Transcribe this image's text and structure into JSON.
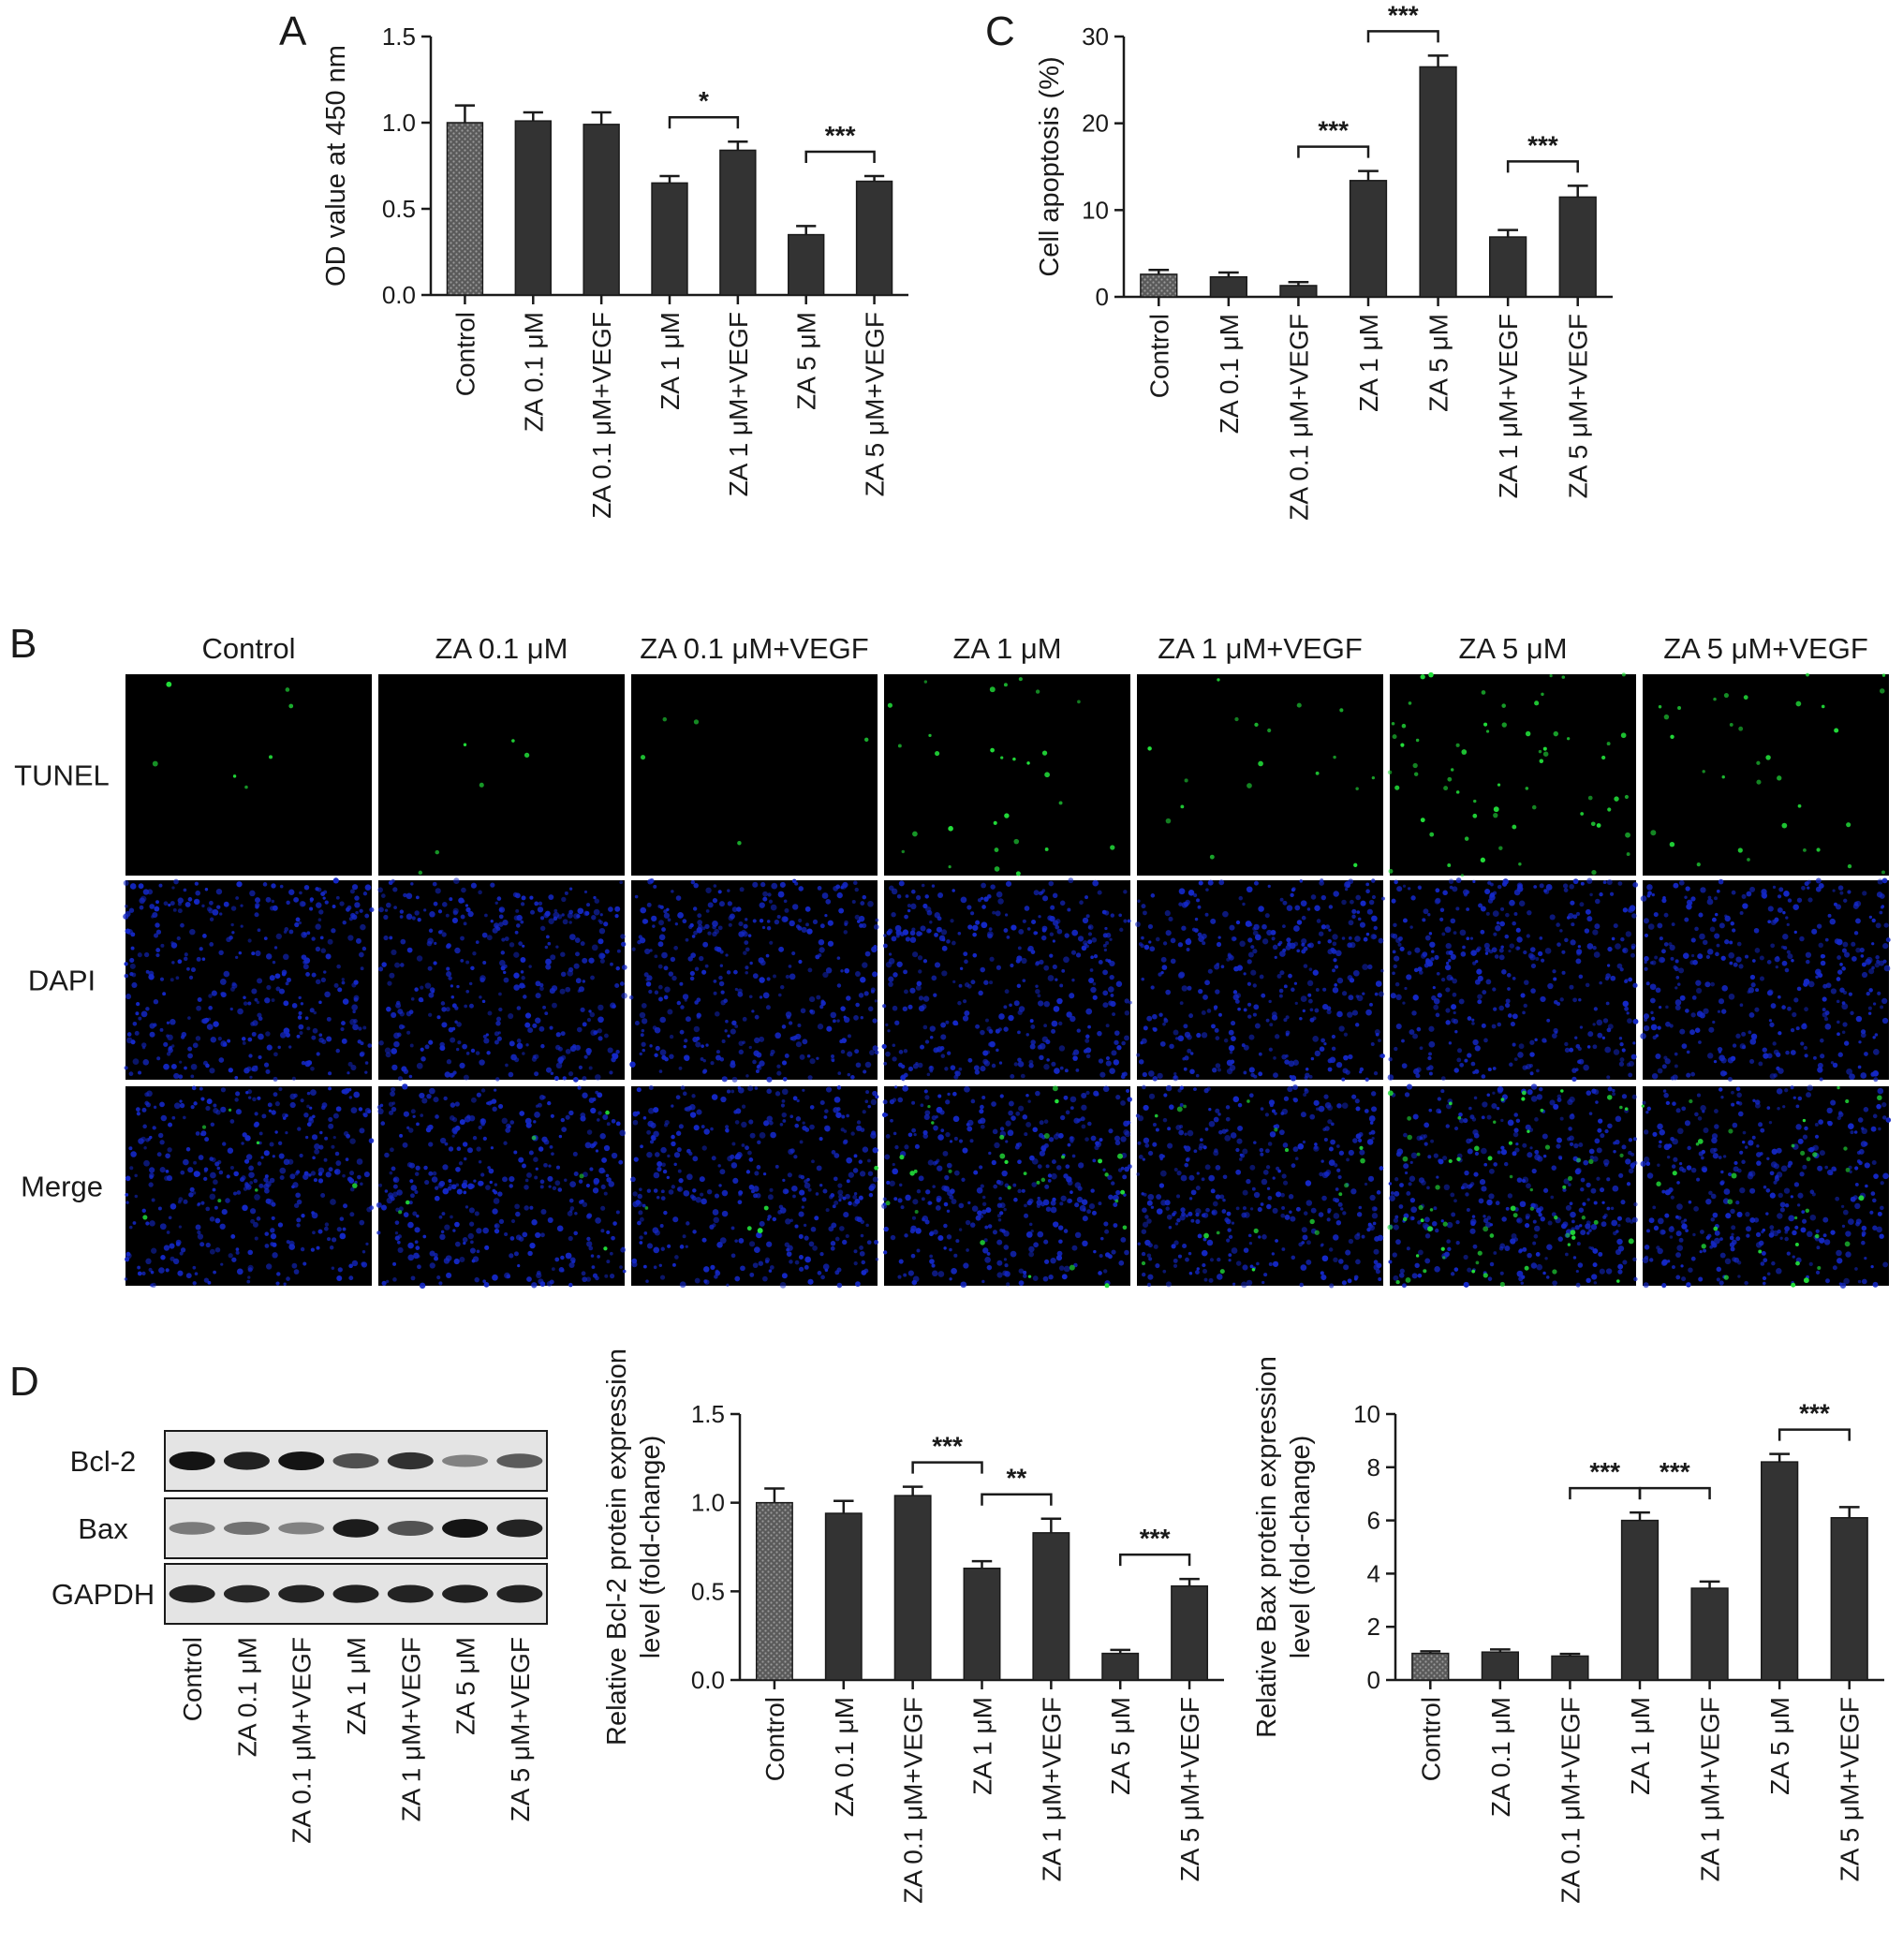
{
  "panels": {
    "A": {
      "letter": "A"
    },
    "B": {
      "letter": "B"
    },
    "C": {
      "letter": "C"
    },
    "D": {
      "letter": "D"
    }
  },
  "colors": {
    "bar": "#333333",
    "control_bar": "#6a6a6a",
    "tunel": "#22e03a",
    "dapi": "#1428c8",
    "blot_bg": "#e4e4e4",
    "band": "#141414"
  },
  "chart_data": [
    {
      "id": "A",
      "type": "bar",
      "title": "",
      "ylabel": "OD value at 450 nm",
      "categories": [
        "Control",
        "ZA 0.1 μM",
        "ZA 0.1 μM+VEGF",
        "ZA 1 μM",
        "ZA 1 μM+VEGF",
        "ZA 5 μM",
        "ZA 5 μM+VEGF"
      ],
      "values": [
        1.0,
        1.01,
        0.99,
        0.65,
        0.84,
        0.35,
        0.66
      ],
      "errors": [
        0.1,
        0.05,
        0.07,
        0.04,
        0.05,
        0.05,
        0.03
      ],
      "ylim": [
        0,
        1.5
      ],
      "yticks": [
        "0.0",
        "0.5",
        "1.0",
        "1.5"
      ],
      "significance": [
        {
          "from": 3,
          "to": 4,
          "label": "*"
        },
        {
          "from": 5,
          "to": 6,
          "label": "***"
        }
      ]
    },
    {
      "id": "C",
      "type": "bar",
      "title": "",
      "ylabel": "Cell apoptosis (%)",
      "categories": [
        "Control",
        "ZA 0.1 μM",
        "ZA 0.1 μM+VEGF",
        "ZA 1 μM",
        "ZA 5 μM",
        "ZA 1 μM+VEGF",
        "ZA 5 μM+VEGF"
      ],
      "values": [
        2.6,
        2.3,
        1.3,
        13.4,
        26.5,
        6.9,
        11.5
      ],
      "errors": [
        0.5,
        0.5,
        0.4,
        1.1,
        1.3,
        0.8,
        1.3
      ],
      "ylim": [
        0,
        30
      ],
      "yticks": [
        "0",
        "10",
        "20",
        "30"
      ],
      "significance": [
        {
          "from": 2,
          "to": 3,
          "label": "***"
        },
        {
          "from": 3,
          "to": 4,
          "label": "***"
        },
        {
          "from": 5,
          "to": 6,
          "label": "***"
        }
      ]
    },
    {
      "id": "D-bcl2",
      "type": "bar",
      "title": "",
      "ylabel": [
        "Relative Bcl-2 protein expression",
        "level (fold-change)"
      ],
      "categories": [
        "Control",
        "ZA 0.1 μM",
        "ZA 0.1 μM+VEGF",
        "ZA 1 μM",
        "ZA 1 μM+VEGF",
        "ZA 5 μM",
        "ZA 5 μM+VEGF"
      ],
      "values": [
        1.0,
        0.94,
        1.04,
        0.63,
        0.83,
        0.15,
        0.53
      ],
      "errors": [
        0.08,
        0.07,
        0.05,
        0.04,
        0.08,
        0.02,
        0.04
      ],
      "ylim": [
        0,
        1.5
      ],
      "yticks": [
        "0.0",
        "0.5",
        "1.0",
        "1.5"
      ],
      "significance": [
        {
          "from": 2,
          "to": 3,
          "label": "***"
        },
        {
          "from": 3,
          "to": 4,
          "label": "**"
        },
        {
          "from": 5,
          "to": 6,
          "label": "***"
        }
      ]
    },
    {
      "id": "D-bax",
      "type": "bar",
      "title": "",
      "ylabel": [
        "Relative Bax protein expression",
        "level (fold-change)"
      ],
      "categories": [
        "Control",
        "ZA 0.1 μM",
        "ZA 0.1 μM+VEGF",
        "ZA 1 μM",
        "ZA 1 μM+VEGF",
        "ZA 5 μM",
        "ZA 5 μM+VEGF"
      ],
      "values": [
        1.0,
        1.05,
        0.9,
        6.0,
        3.45,
        8.2,
        6.1
      ],
      "errors": [
        0.08,
        0.1,
        0.08,
        0.3,
        0.25,
        0.3,
        0.4
      ],
      "ylim": [
        0,
        10
      ],
      "yticks": [
        "0",
        "2",
        "4",
        "6",
        "8",
        "10"
      ],
      "significance": [
        {
          "from": 2,
          "to": 3,
          "label": "***"
        },
        {
          "from": 3,
          "to": 4,
          "label": "***"
        },
        {
          "from": 5,
          "to": 6,
          "label": "***"
        }
      ]
    }
  ],
  "microscopy": {
    "columns": [
      "Control",
      "ZA 0.1 μM",
      "ZA 0.1 μM+VEGF",
      "ZA 1 μM",
      "ZA 1 μM+VEGF",
      "ZA 5 μM",
      "ZA 5 μM+VEGF"
    ],
    "rows": [
      "TUNEL",
      "DAPI",
      "Merge"
    ],
    "tunel_level": [
      0.05,
      0.04,
      0.03,
      0.3,
      0.18,
      0.7,
      0.35
    ]
  },
  "western_blot": {
    "proteins": [
      "Bcl-2",
      "Bax",
      "GAPDH"
    ],
    "lanes": [
      "Control",
      "ZA 0.1 μM",
      "ZA 0.1 μM+VEGF",
      "ZA 1 μM",
      "ZA 1 μM+VEGF",
      "ZA 5 μM",
      "ZA 5 μM+VEGF"
    ],
    "intensity": [
      [
        1.0,
        0.92,
        1.0,
        0.62,
        0.82,
        0.3,
        0.55
      ],
      [
        0.35,
        0.4,
        0.3,
        0.95,
        0.6,
        1.0,
        0.9
      ],
      [
        0.9,
        0.88,
        0.9,
        0.92,
        0.9,
        0.92,
        0.9
      ]
    ]
  }
}
